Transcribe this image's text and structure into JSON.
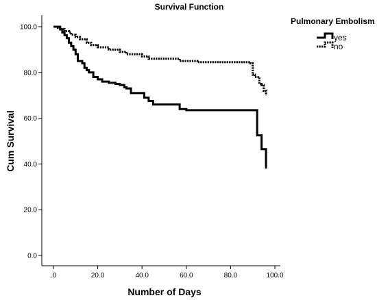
{
  "chart_data": {
    "type": "line",
    "step": true,
    "title": "Survival Function",
    "xlabel": "Number of Days",
    "ylabel": "Cum Survival",
    "xlim": [
      0,
      100
    ],
    "ylim": [
      0,
      100
    ],
    "x_ticks": [
      0,
      20,
      40,
      60,
      80,
      100
    ],
    "x_tick_labels": [
      ".0",
      "20.0",
      "40.0",
      "60.0",
      "80.0",
      "100.0"
    ],
    "y_ticks": [
      0,
      20,
      40,
      60,
      80,
      100
    ],
    "y_tick_labels": [
      "0.0",
      "20.0",
      "40.0",
      "60.0",
      "80.0",
      "100.0"
    ],
    "grid": false,
    "legend": {
      "title": "Pulmonary Embolism",
      "placement": "top-right, outside plot"
    },
    "series": [
      {
        "name": "yes",
        "style": "solid",
        "color": "#000000",
        "x": [
          0,
          3,
          4,
          5,
          6,
          7,
          8,
          9,
          10,
          11,
          13,
          14,
          15,
          16,
          18,
          20,
          22,
          25,
          28,
          30,
          32,
          33,
          35,
          40,
          41,
          43,
          45,
          57,
          60,
          90,
          92,
          94,
          96
        ],
        "y": [
          100,
          98.8,
          97.5,
          96.3,
          95,
          93,
          91.5,
          90,
          88,
          85,
          84,
          82,
          81,
          80,
          78,
          77,
          76,
          75.5,
          75,
          74.5,
          73.5,
          73,
          71,
          71,
          69,
          67.5,
          66,
          64,
          63.5,
          63.5,
          52.5,
          46.5,
          38
        ]
      },
      {
        "name": "no",
        "style": "dotted",
        "color": "#000000",
        "x": [
          0,
          2,
          3,
          5,
          7,
          8,
          10,
          12,
          15,
          17,
          20,
          25,
          30,
          33,
          40,
          43,
          57,
          65,
          85,
          89,
          90,
          91,
          93,
          94,
          95,
          96
        ],
        "y": [
          100,
          99.5,
          99,
          98,
          97.5,
          96.5,
          95.5,
          94.5,
          93,
          92,
          91,
          90,
          89,
          88,
          87,
          86,
          85,
          84.5,
          84.5,
          84,
          79,
          78,
          75,
          74.5,
          72,
          70
        ]
      }
    ]
  }
}
